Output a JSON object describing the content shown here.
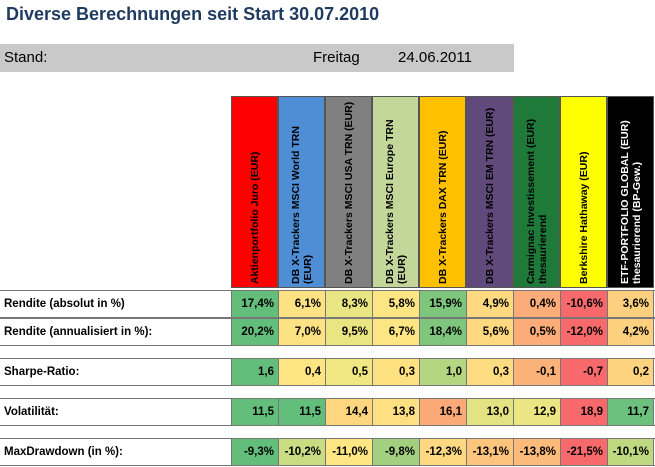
{
  "title": "Diverse Berechnungen seit Start 30.07.2010",
  "stand": {
    "label": "Stand:",
    "day": "Freitag",
    "date": "24.06.2011"
  },
  "funds": [
    {
      "name": "Aktienportfolio Juro (EUR)",
      "bg": "#ff0000",
      "fg": "#000000"
    },
    {
      "name": "DB X-Trackers MSCI World TRN (EUR)",
      "bg": "#4f8ed4",
      "fg": "#000000"
    },
    {
      "name": "DB X-Trackers MSCI USA TRN (EUR)",
      "bg": "#808080",
      "fg": "#000000"
    },
    {
      "name": "DB X-Trackers MSCI Europe TRN (EUR)",
      "bg": "#c4d79b",
      "fg": "#000000"
    },
    {
      "name": "DB X-Trackers DAX TRN (EUR)",
      "bg": "#ffc000",
      "fg": "#000000"
    },
    {
      "name": "DB X-Trackers MSCI EM TRN (EUR)",
      "bg": "#604a7b",
      "fg": "#000000"
    },
    {
      "name": "Carmignac Investissement (EUR) thesaurierend",
      "bg": "#1f7a3a",
      "fg": "#000000"
    },
    {
      "name": "Berkshire Hathaway (EUR)",
      "bg": "#ffff00",
      "fg": "#000000"
    },
    {
      "name": "ETF-PORTFOLIO GLOBAL (EUR) thesaurierend (BP-Gew.)",
      "bg": "#000000",
      "fg": "#ffffff"
    }
  ],
  "rows": [
    {
      "label": "Rendite (absolut in %)",
      "values": [
        "17,4%",
        "6,1%",
        "8,3%",
        "5,8%",
        "15,9%",
        "4,9%",
        "0,4%",
        "-10,6%",
        "3,6%"
      ],
      "colors": [
        "#63be7b",
        "#fde283",
        "#e9e583",
        "#fee583",
        "#7fc67d",
        "#fed980",
        "#fbac78",
        "#f8696b",
        "#fdd07f"
      ]
    },
    {
      "label": "Rendite (annualisiert in %):",
      "values": [
        "20,2%",
        "7,0%",
        "9,5%",
        "6,7%",
        "18,4%",
        "5,6%",
        "0,5%",
        "-12,0%",
        "4,2%"
      ],
      "colors": [
        "#63be7b",
        "#fde283",
        "#e9e583",
        "#fee583",
        "#7fc67d",
        "#fed980",
        "#fbac78",
        "#f8696b",
        "#fdd07f"
      ]
    },
    {
      "label": "Sharpe-Ratio:",
      "values": [
        "1,6",
        "0,4",
        "0,5",
        "0,3",
        "1,0",
        "0,3",
        "-0,1",
        "-0,7",
        "0,2"
      ],
      "colors": [
        "#63be7b",
        "#fee583",
        "#f2e883",
        "#fee282",
        "#b5d680",
        "#fedc81",
        "#fbb279",
        "#f8696b",
        "#fdd37f"
      ]
    },
    {
      "label": "Volatilität:",
      "values": [
        "11,5",
        "11,5",
        "14,4",
        "13,8",
        "16,1",
        "13,0",
        "12,9",
        "18,9",
        "11,7"
      ],
      "colors": [
        "#63be7b",
        "#63be7b",
        "#fed680",
        "#fee082",
        "#fba977",
        "#e4e383",
        "#ebe583",
        "#f8696b",
        "#6cc17c"
      ]
    },
    {
      "label": "MaxDrawdown (in %):",
      "values": [
        "-9,3%",
        "-10,2%",
        "-11,0%",
        "-9,8%",
        "-12,3%",
        "-13,1%",
        "-13,8%",
        "-21,5%",
        "-10,1%"
      ],
      "colors": [
        "#63be7b",
        "#c9dc81",
        "#fde683",
        "#a2d07f",
        "#fed981",
        "#fdc47d",
        "#fcba7b",
        "#f8696b",
        "#bfd981"
      ]
    }
  ]
}
